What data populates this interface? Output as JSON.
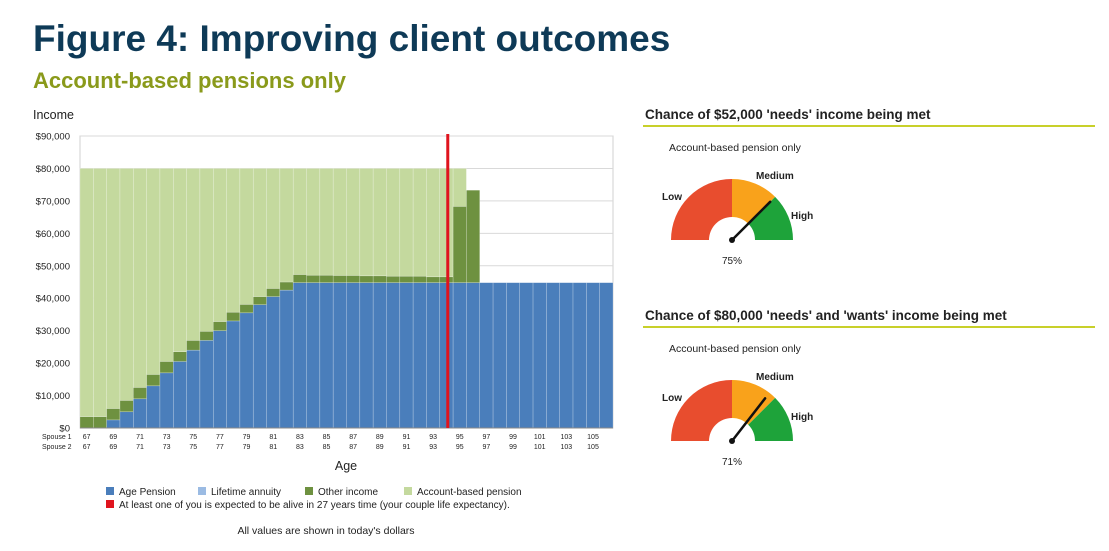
{
  "header": {
    "title": "Figure 4: Improving client outcomes",
    "subtitle": "Account-based pensions only"
  },
  "chart_data": {
    "type": "bar",
    "stacked": true,
    "ylabel": "Income",
    "xlabel": "Age",
    "ylim": [
      0,
      90000
    ],
    "yticks": [
      "$0",
      "$10,000",
      "$20,000",
      "$30,000",
      "$40,000",
      "$50,000",
      "$60,000",
      "$70,000",
      "$80,000",
      "$90,000"
    ],
    "grid": true,
    "x_row_labels": [
      "Spouse 1",
      "Spouse 2"
    ],
    "x_tick_labels": [
      "67",
      "69",
      "71",
      "73",
      "75",
      "77",
      "79",
      "81",
      "83",
      "85",
      "87",
      "89",
      "91",
      "93",
      "95",
      "97",
      "99",
      "101",
      "103",
      "105"
    ],
    "ages": [
      67,
      68,
      69,
      70,
      71,
      72,
      73,
      74,
      75,
      76,
      77,
      78,
      79,
      80,
      81,
      82,
      83,
      84,
      85,
      86,
      87,
      88,
      89,
      90,
      91,
      92,
      93,
      94,
      95,
      96,
      97,
      98,
      99,
      100,
      101,
      102,
      103,
      104,
      105,
      106
    ],
    "series": [
      {
        "name": "Age Pension",
        "color": "#4a7ebb",
        "values": [
          0,
          0,
          2500,
          5000,
          9000,
          13000,
          17000,
          20500,
          24000,
          27000,
          30000,
          33000,
          35500,
          38000,
          40500,
          42500,
          44800,
          44800,
          44800,
          44800,
          44800,
          44800,
          44800,
          44800,
          44800,
          44800,
          44800,
          44800,
          44800,
          44800,
          44800,
          44800,
          44800,
          44800,
          44800,
          44800,
          44800,
          44800,
          44800,
          44800
        ]
      },
      {
        "name": "Lifetime annuity",
        "color": "#9bbbe3",
        "values": [
          0,
          0,
          0,
          0,
          0,
          0,
          0,
          0,
          0,
          0,
          0,
          0,
          0,
          0,
          0,
          0,
          0,
          0,
          0,
          0,
          0,
          0,
          0,
          0,
          0,
          0,
          0,
          0,
          0,
          0,
          0,
          0,
          0,
          0,
          0,
          0,
          0,
          0,
          0,
          0
        ]
      },
      {
        "name": "Other income",
        "color": "#6e9140",
        "values": [
          3500,
          3500,
          3500,
          3500,
          3500,
          3500,
          3500,
          3000,
          3000,
          2800,
          2800,
          2700,
          2600,
          2500,
          2500,
          2500,
          2500,
          2300,
          2300,
          2200,
          2200,
          2100,
          2100,
          2000,
          2000,
          2000,
          1800,
          1800,
          23500,
          28500,
          0,
          0,
          0,
          0,
          0,
          0,
          0,
          0,
          0,
          0
        ]
      },
      {
        "name": "Account-based pension",
        "color": "#c4d99e",
        "values": [
          76500,
          76500,
          74000,
          71500,
          67500,
          63500,
          59500,
          56500,
          53000,
          50200,
          47200,
          44300,
          41900,
          39500,
          37000,
          35000,
          32700,
          32900,
          32900,
          33000,
          33000,
          33100,
          33100,
          33200,
          33200,
          33200,
          33400,
          33400,
          11700,
          0,
          0,
          0,
          0,
          0,
          0,
          0,
          0,
          0,
          0,
          0
        ]
      }
    ],
    "life_expectancy_marker": {
      "age": 94.6,
      "color": "#e0141e",
      "label": "At least one of you is expected to be alive in 27 years time (your couple life expectancy)."
    },
    "note": "All values are shown in today's dollars"
  },
  "gauges": [
    {
      "title": "Chance of $52,000 'needs' income being met",
      "subtitle": "Account-based pension only",
      "low_label": "Low",
      "medium_label": "Medium",
      "high_label": "High",
      "value_percent": 75,
      "value_text": "75%",
      "colors": {
        "low": "#e84d2e",
        "medium": "#f9a21b",
        "high": "#1ea33a"
      }
    },
    {
      "title": "Chance of $80,000 'needs' and 'wants' income being met",
      "subtitle": "Account-based pension only",
      "low_label": "Low",
      "medium_label": "Medium",
      "high_label": "High",
      "value_percent": 71,
      "value_text": "71%",
      "colors": {
        "low": "#e84d2e",
        "medium": "#f9a21b",
        "high": "#1ea33a"
      }
    }
  ]
}
